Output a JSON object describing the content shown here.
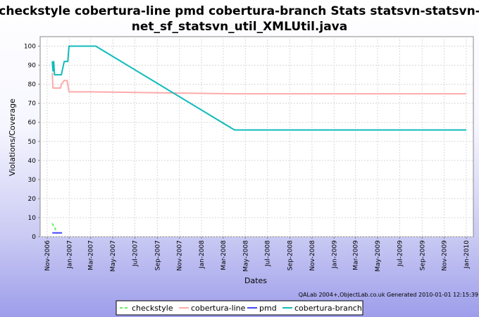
{
  "chart_data": {
    "type": "line",
    "title_line1": "checkstyle cobertura-line pmd cobertura-branch  Stats statsvn-statsvn-",
    "title_line2": "net_sf_statsvn_util_XMLUtil.java",
    "xlabel": "Dates",
    "ylabel": "Violations/Coverage",
    "ylim": [
      0,
      105
    ],
    "yticks": [
      0,
      10,
      20,
      30,
      40,
      50,
      60,
      70,
      80,
      90,
      100
    ],
    "xlim": [
      "2006-11-01",
      "2010-01-01"
    ],
    "xticks": [
      "Nov-2006",
      "Jan-2007",
      "Mar-2007",
      "May-2007",
      "Jul-2007",
      "Sep-2007",
      "Nov-2007",
      "Jan-2008",
      "Mar-2008",
      "May-2008",
      "Jul-2008",
      "Sep-2008",
      "Nov-2008",
      "Jan-2009",
      "Mar-2009",
      "May-2009",
      "Jul-2009",
      "Sep-2009",
      "Nov-2009",
      "Jan-2010"
    ],
    "grid": true,
    "legend_position": "bottom",
    "series": [
      {
        "name": "checkstyle",
        "color": "#66ee66",
        "dash": true,
        "points": [
          [
            "2006-11-15",
            7
          ],
          [
            "2006-11-18",
            6
          ],
          [
            "2006-11-22",
            5
          ],
          [
            "2006-11-26",
            2
          ],
          [
            "2006-12-05",
            2
          ],
          [
            "2006-12-12",
            2
          ]
        ]
      },
      {
        "name": "cobertura-line",
        "color": "#ffaaaa",
        "dash": false,
        "points": [
          [
            "2006-11-15",
            86
          ],
          [
            "2006-11-17",
            78
          ],
          [
            "2006-11-20",
            78
          ],
          [
            "2006-12-08",
            78
          ],
          [
            "2006-12-10",
            80
          ],
          [
            "2006-12-18",
            82
          ],
          [
            "2006-12-26",
            82
          ],
          [
            "2006-12-31",
            76
          ],
          [
            "2007-03-01",
            76
          ],
          [
            "2007-06-01",
            75.8
          ],
          [
            "2007-11-01",
            75.4
          ],
          [
            "2008-04-01",
            75
          ],
          [
            "2009-01-01",
            75
          ],
          [
            "2010-01-01",
            75
          ]
        ]
      },
      {
        "name": "pmd",
        "color": "#4444ff",
        "dash": false,
        "points": [
          [
            "2006-11-15",
            2
          ],
          [
            "2006-11-22",
            2
          ],
          [
            "2006-11-28",
            2
          ],
          [
            "2006-12-12",
            2
          ]
        ]
      },
      {
        "name": "cobertura-branch",
        "color": "#11bbbb",
        "dash": false,
        "points": [
          [
            "2006-11-15",
            92
          ],
          [
            "2006-11-17",
            87
          ],
          [
            "2006-11-19",
            92
          ],
          [
            "2006-11-21",
            85
          ],
          [
            "2006-12-10",
            85
          ],
          [
            "2006-12-18",
            92
          ],
          [
            "2006-12-28",
            92
          ],
          [
            "2006-12-31",
            100
          ],
          [
            "2007-03-15",
            100
          ],
          [
            "2008-04-01",
            56
          ],
          [
            "2009-01-01",
            56
          ],
          [
            "2010-01-01",
            56
          ]
        ]
      }
    ],
    "footer": "QALab 2004+,ObjectLab.co.uk Generated 2010-01-01 12:15:39"
  }
}
